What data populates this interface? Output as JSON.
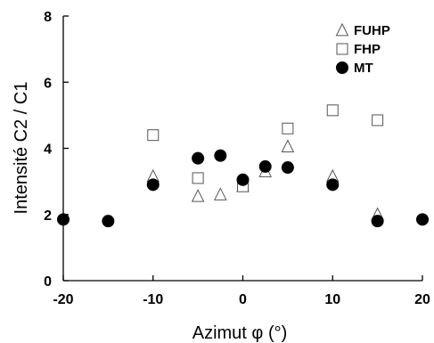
{
  "chart_data": {
    "type": "scatter",
    "xlabel": "Azimut φ (°)",
    "ylabel": "Intensité C2 / C1",
    "xlim": [
      -20,
      20
    ],
    "ylim": [
      0,
      8
    ],
    "xticks": [
      -20,
      -10,
      0,
      10,
      20
    ],
    "yticks": [
      0,
      2,
      4,
      6,
      8
    ],
    "xtick_labels": [
      "-20",
      "-10",
      "0",
      "10",
      "20"
    ],
    "ytick_labels": [
      "0",
      "2",
      "4",
      "6",
      "8"
    ],
    "grid": false,
    "legend_position": "top-right",
    "series": [
      {
        "name": "FUHP",
        "marker": "triangle-open",
        "x": [
          -10,
          -5,
          -2.5,
          0,
          2.5,
          5,
          10,
          15
        ],
        "y": [
          3.15,
          2.55,
          2.6,
          2.85,
          3.3,
          4.05,
          3.15,
          2.0
        ]
      },
      {
        "name": "FHP",
        "marker": "square-open",
        "x": [
          -10,
          -5,
          0,
          5,
          10,
          15
        ],
        "y": [
          4.4,
          3.1,
          2.85,
          4.6,
          5.15,
          4.85
        ]
      },
      {
        "name": "MT",
        "marker": "circle-filled",
        "x": [
          -20,
          -15,
          -10,
          -5,
          -2.5,
          0,
          2.5,
          5,
          10,
          15,
          20
        ],
        "y": [
          1.85,
          1.8,
          2.9,
          3.7,
          3.78,
          3.05,
          3.45,
          3.42,
          2.9,
          1.8,
          1.85
        ]
      }
    ]
  }
}
